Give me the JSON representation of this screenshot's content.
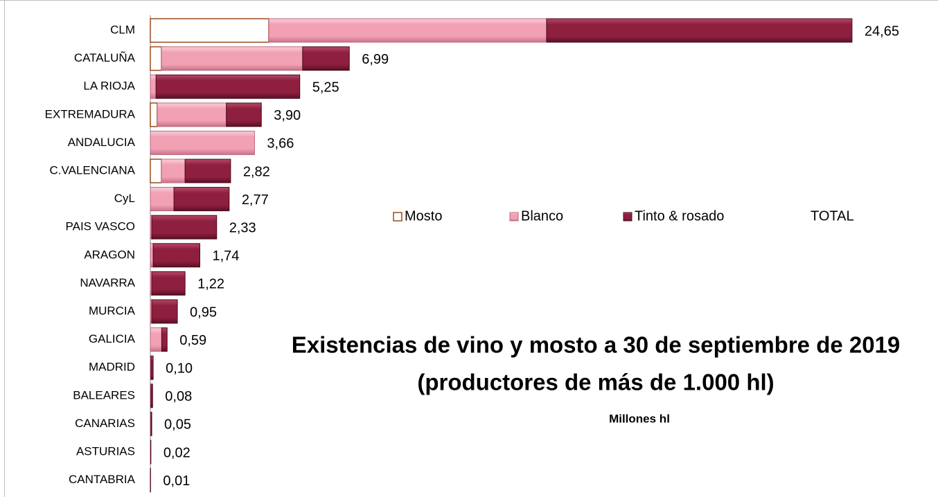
{
  "chart_data": {
    "type": "stacked-barh",
    "title": [
      "Existencias de vino y mosto a 30 de septiembre de 2019",
      "(productores de más de 1.000 hl)"
    ],
    "subtitle": "Millones hl",
    "categories": [
      "CLM",
      "CATALUÑA",
      "LA RIOJA",
      "EXTREMADURA",
      "ANDALUCIA",
      "C.VALENCIANA",
      "CyL",
      "PAIS VASCO",
      "ARAGON",
      "NAVARRA",
      "MURCIA",
      "GALICIA",
      "MADRID",
      "BALEARES",
      "CANARIAS",
      "ASTURIAS",
      "CANTABRIA"
    ],
    "xlim": [
      0,
      27.5
    ],
    "legend": "center",
    "series": [
      {
        "name": "Mosto",
        "color": "#ffffff",
        "values": [
          4.16,
          0.39,
          0,
          0.24,
          0,
          0.39,
          0,
          0,
          0,
          0,
          0,
          0,
          0,
          0,
          0,
          0,
          0
        ]
      },
      {
        "name": "Blanco",
        "color": "#f4a5b8",
        "values": [
          9.76,
          4.96,
          0.2,
          2.43,
          3.66,
          0.83,
          0.83,
          0.05,
          0.1,
          0.05,
          0.05,
          0.4,
          0.02,
          0.02,
          0.02,
          0.01,
          0
        ]
      },
      {
        "name": "Tinto & rosado",
        "color": "#8e1f3f",
        "values": [
          10.73,
          1.64,
          5.05,
          1.23,
          0,
          1.6,
          1.94,
          2.28,
          1.64,
          1.17,
          0.9,
          0.19,
          0.08,
          0.06,
          0.03,
          0.01,
          0.01
        ]
      },
      {
        "name": "TOTAL",
        "color": "none",
        "values": [
          24.65,
          6.99,
          5.25,
          3.9,
          3.66,
          2.82,
          2.77,
          2.33,
          1.74,
          1.22,
          0.95,
          0.59,
          0.1,
          0.08,
          0.05,
          0.02,
          0.01
        ],
        "value_labels": [
          "24,65",
          "6,99",
          "5,25",
          "3,90",
          "3,66",
          "2,82",
          "2,77",
          "2,33",
          "1,74",
          "1,22",
          "0,95",
          "0,59",
          "0,10",
          "0,08",
          "0,05",
          "0,02",
          "0,01"
        ]
      }
    ]
  }
}
